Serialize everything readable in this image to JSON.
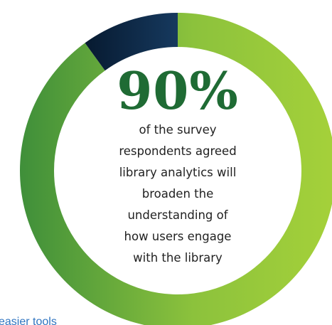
{
  "chart_data": {
    "type": "pie",
    "slices": [
      {
        "label": "agreed",
        "value": 90,
        "color": "#9bc93a"
      },
      {
        "label": "other",
        "value": 10,
        "color": "#0d2a4a"
      }
    ],
    "center_value": "90%",
    "center_caption_lines": [
      "of the survey",
      "respondents agreed",
      "library analytics will",
      "broaden the",
      "understanding of",
      "how users engage",
      "with the library"
    ]
  },
  "link": {
    "text": "easier tools"
  },
  "colors": {
    "green_light": "#9bc93a",
    "green_dark": "#3f8f3a",
    "navy": "#0d2a4a",
    "number_green": "#1f6b34",
    "link_blue": "#2f74c0"
  }
}
